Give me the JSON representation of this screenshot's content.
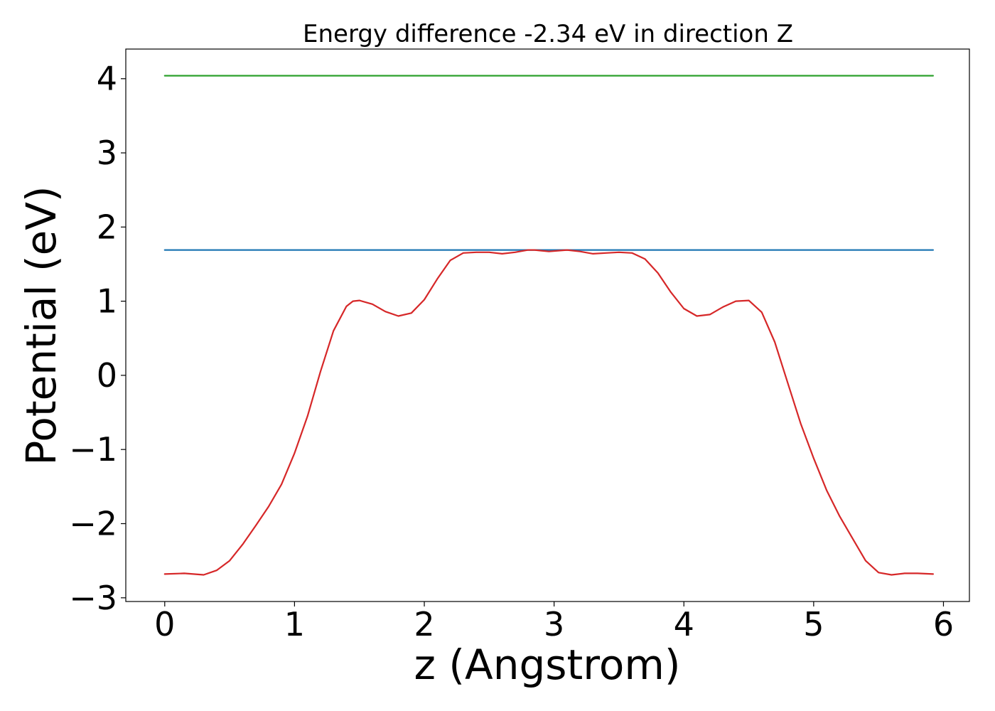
{
  "chart_data": {
    "type": "line",
    "title": "Energy difference -2.34 eV in direction Z",
    "xlabel": "z (Angstrom)",
    "ylabel": "Potential (eV)",
    "xlim": [
      -0.3,
      6.2
    ],
    "ylim": [
      -3.05,
      4.4
    ],
    "xticks": [
      0,
      1,
      2,
      3,
      4,
      5,
      6
    ],
    "yticks": [
      -3,
      -2,
      -1,
      0,
      1,
      2,
      3,
      4
    ],
    "grid": false,
    "legend": "none",
    "series": [
      {
        "color": "#2ca02c",
        "x": [
          0,
          5.92
        ],
        "y": [
          4.04,
          4.04
        ]
      },
      {
        "color": "#1f77b4",
        "x": [
          0,
          5.92
        ],
        "y": [
          1.69,
          1.69
        ]
      },
      {
        "color": "#d62728",
        "x": [
          0,
          0.15,
          0.3,
          0.4,
          0.5,
          0.6,
          0.7,
          0.8,
          0.9,
          1.0,
          1.1,
          1.2,
          1.3,
          1.4,
          1.45,
          1.5,
          1.6,
          1.7,
          1.8,
          1.9,
          2.0,
          2.1,
          2.2,
          2.3,
          2.4,
          2.5,
          2.6,
          2.7,
          2.8,
          2.85,
          2.96,
          3.1,
          3.2,
          3.3,
          3.4,
          3.5,
          3.6,
          3.7,
          3.8,
          3.9,
          4.0,
          4.1,
          4.2,
          4.3,
          4.4,
          4.5,
          4.6,
          4.7,
          4.8,
          4.9,
          5.0,
          5.1,
          5.2,
          5.3,
          5.4,
          5.5,
          5.6,
          5.7,
          5.8,
          5.92
        ],
        "y": [
          -2.68,
          -2.67,
          -2.69,
          -2.63,
          -2.5,
          -2.28,
          -2.03,
          -1.77,
          -1.47,
          -1.05,
          -0.55,
          0.05,
          0.6,
          0.93,
          1.0,
          1.01,
          0.96,
          0.86,
          0.8,
          0.84,
          1.02,
          1.3,
          1.55,
          1.65,
          1.66,
          1.66,
          1.64,
          1.66,
          1.69,
          1.69,
          1.67,
          1.69,
          1.67,
          1.64,
          1.65,
          1.66,
          1.65,
          1.57,
          1.38,
          1.12,
          0.9,
          0.8,
          0.82,
          0.92,
          1.0,
          1.01,
          0.85,
          0.45,
          -0.1,
          -0.65,
          -1.12,
          -1.55,
          -1.9,
          -2.2,
          -2.5,
          -2.66,
          -2.69,
          -2.67,
          -2.67,
          -2.68
        ]
      }
    ]
  }
}
